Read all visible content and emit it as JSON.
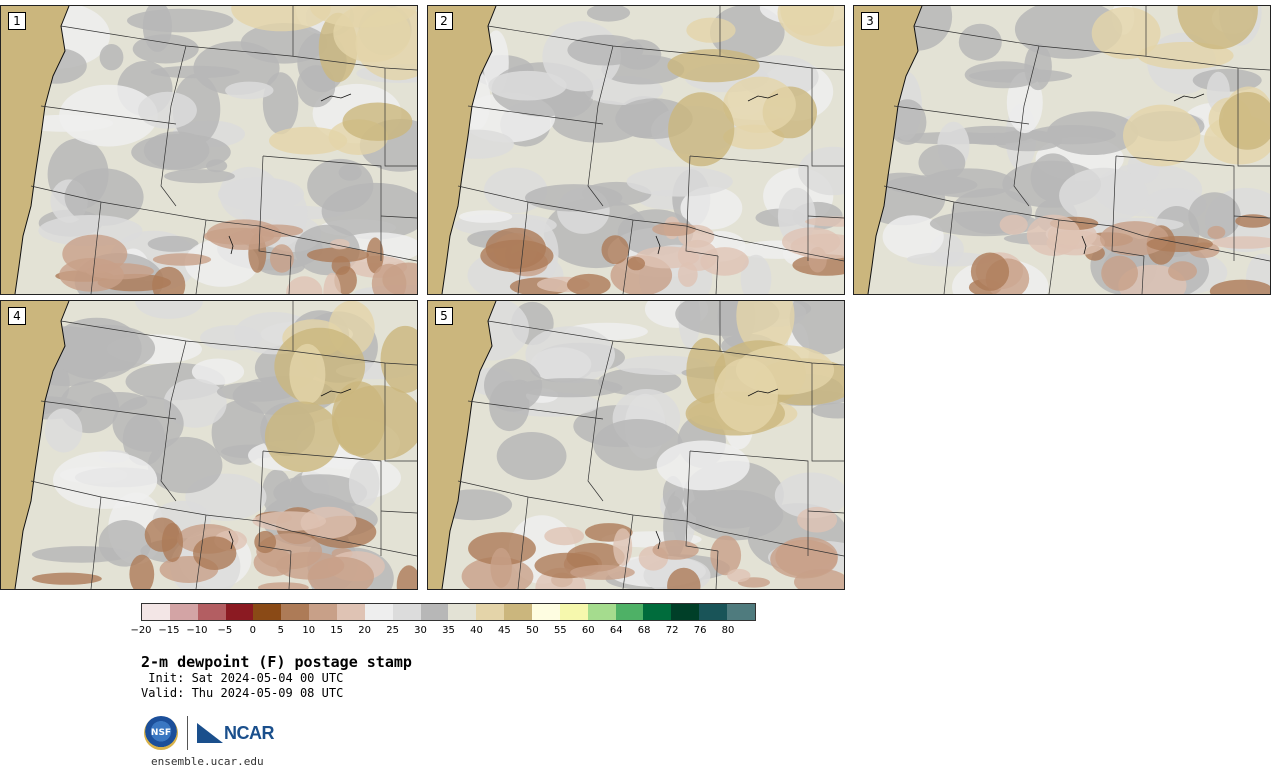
{
  "panels": [
    {
      "label": "1"
    },
    {
      "label": "2"
    },
    {
      "label": "3"
    },
    {
      "label": "4"
    },
    {
      "label": "5"
    }
  ],
  "colorbar": {
    "colors": [
      "#f3e6e6",
      "#d3a4a5",
      "#b35e62",
      "#8b1a22",
      "#8a4a16",
      "#ad7b57",
      "#c8a088",
      "#dfc3b4",
      "#eeeeee",
      "#dcdcdc",
      "#b7b7b7",
      "#e3e2d5",
      "#e4d4a9",
      "#cbb67d",
      "#fefde1",
      "#f6f8ad",
      "#a5dc8e",
      "#4eb166",
      "#006c3c",
      "#003f28",
      "#195458",
      "#4f7b7e"
    ],
    "ticks": [
      "−20",
      "−15",
      "−10",
      "−5",
      "0",
      "5",
      "10",
      "15",
      "20",
      "25",
      "30",
      "35",
      "40",
      "45",
      "50",
      "55",
      "60",
      "64",
      "68",
      "72",
      "76",
      "80"
    ]
  },
  "title": "2-m dewpoint (F) postage stamp",
  "init": " Init: Sat 2024-05-04 00 UTC",
  "valid": "Valid: Thu 2024-05-09 08 UTC",
  "logos": {
    "nsf": "NSF",
    "ncar": "NCAR"
  },
  "url": "ensemble.ucar.edu"
}
